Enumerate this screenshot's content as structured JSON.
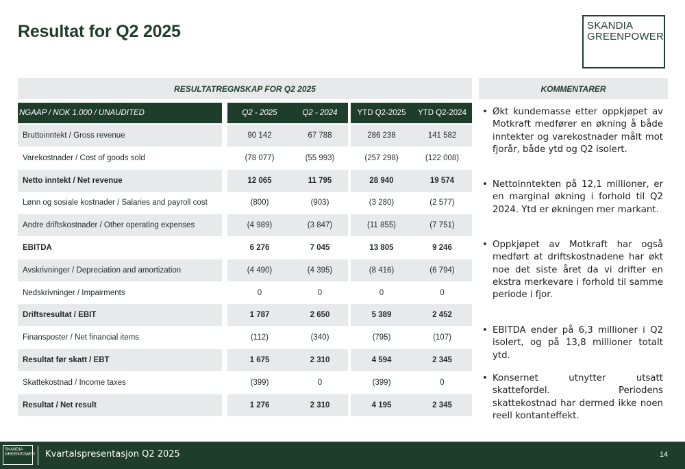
{
  "page": {
    "title": "Resultat for Q2 2025",
    "logo": {
      "line1": "SKANDIA",
      "line2": "GREENPOWER"
    }
  },
  "table": {
    "header": "RESULTATREGNSKAP FOR Q2 2025",
    "columns": [
      "NGAAP / NOK 1.000 / UNAUDITED",
      "Q2 - 2025",
      "Q2 - 2024",
      "YTD Q2-2025",
      "YTD Q2-2024"
    ],
    "rows": [
      {
        "label": "Bruttoinntekt / Gross revenue",
        "values": [
          "90 142",
          "67 788",
          "286 238",
          "141 582"
        ],
        "bold": false
      },
      {
        "label": "Varekostnader / Cost of goods sold",
        "values": [
          "(78 077)",
          "(55 993)",
          "(257 298)",
          "(122 008)"
        ],
        "bold": false
      },
      {
        "label": "Netto inntekt / Net revenue",
        "values": [
          "12 065",
          "11 795",
          "28 940",
          "19 574"
        ],
        "bold": true
      },
      {
        "label": "Lønn og sosiale kostnader / Salaries and payroll cost",
        "values": [
          "(800)",
          "(903)",
          "(3 280)",
          "(2 577)"
        ],
        "bold": false
      },
      {
        "label": "Andre driftskostnader / Other operating expenses",
        "values": [
          "(4 989)",
          "(3 847)",
          "(11 855)",
          "(7 751)"
        ],
        "bold": false
      },
      {
        "label": "EBITDA",
        "values": [
          "6 276",
          "7 045",
          "13 805",
          "9 246"
        ],
        "bold": true
      },
      {
        "label": "Avskrivninger / Depreciation and amortization",
        "values": [
          "(4 490)",
          "(4 395)",
          "(8 416)",
          "(6 794)"
        ],
        "bold": false
      },
      {
        "label": "Nedskrivninger / Impairments",
        "values": [
          "0",
          "0",
          "0",
          "0"
        ],
        "bold": false
      },
      {
        "label": "Driftsresultat / EBIT",
        "values": [
          "1 787",
          "2 650",
          "5 389",
          "2 452"
        ],
        "bold": true
      },
      {
        "label": "Finansposter / Net financial items",
        "values": [
          "(112)",
          "(340)",
          "(795)",
          "(107)"
        ],
        "bold": false
      },
      {
        "label": "Resultat før skatt / EBT",
        "values": [
          "1 675",
          "2 310",
          "4 594",
          "2 345"
        ],
        "bold": true
      },
      {
        "label": "Skattekostnad / Income taxes",
        "values": [
          "(399)",
          "0",
          "(399)",
          "0"
        ],
        "bold": false
      },
      {
        "label": "Resultat / Net result",
        "values": [
          "1 276",
          "2 310",
          "4 195",
          "2 345"
        ],
        "bold": true
      }
    ]
  },
  "comments": {
    "header": "KOMMENTARER",
    "bullet": "•",
    "items": [
      "Økt kundemasse etter oppkjøpet av Motkraft medfører en økning å både inntekter og varekostnader målt mot fjorår, både ytd og Q2 isolert.",
      "Nettoinntekten på 12,1 millioner, er en marginal økning i forhold til Q2 2024. Ytd er økningen mer markant.",
      "Oppkjøpet av Motkraft har også medført at driftskostnadene har økt noe det siste året da vi drifter en ekstra merkevare i forhold til samme periode i fjor.",
      "EBITDA ender på 6,3 millioner i Q2 isolert, og på 13,8 millioner totalt ytd.",
      "Konsernet utnytter utsatt skattefordel. Periodens skattekostnad har dermed ikke noen reell kontanteffekt."
    ]
  },
  "footer": {
    "logo_line1": "SKANDIA",
    "logo_line2": "GREENPOWER",
    "text": "Kvartalspresentasjon Q2 2025",
    "page_number": "14"
  },
  "colors": {
    "brand_green": "#1f3d2b",
    "row_shade": "#e7e9ea"
  }
}
